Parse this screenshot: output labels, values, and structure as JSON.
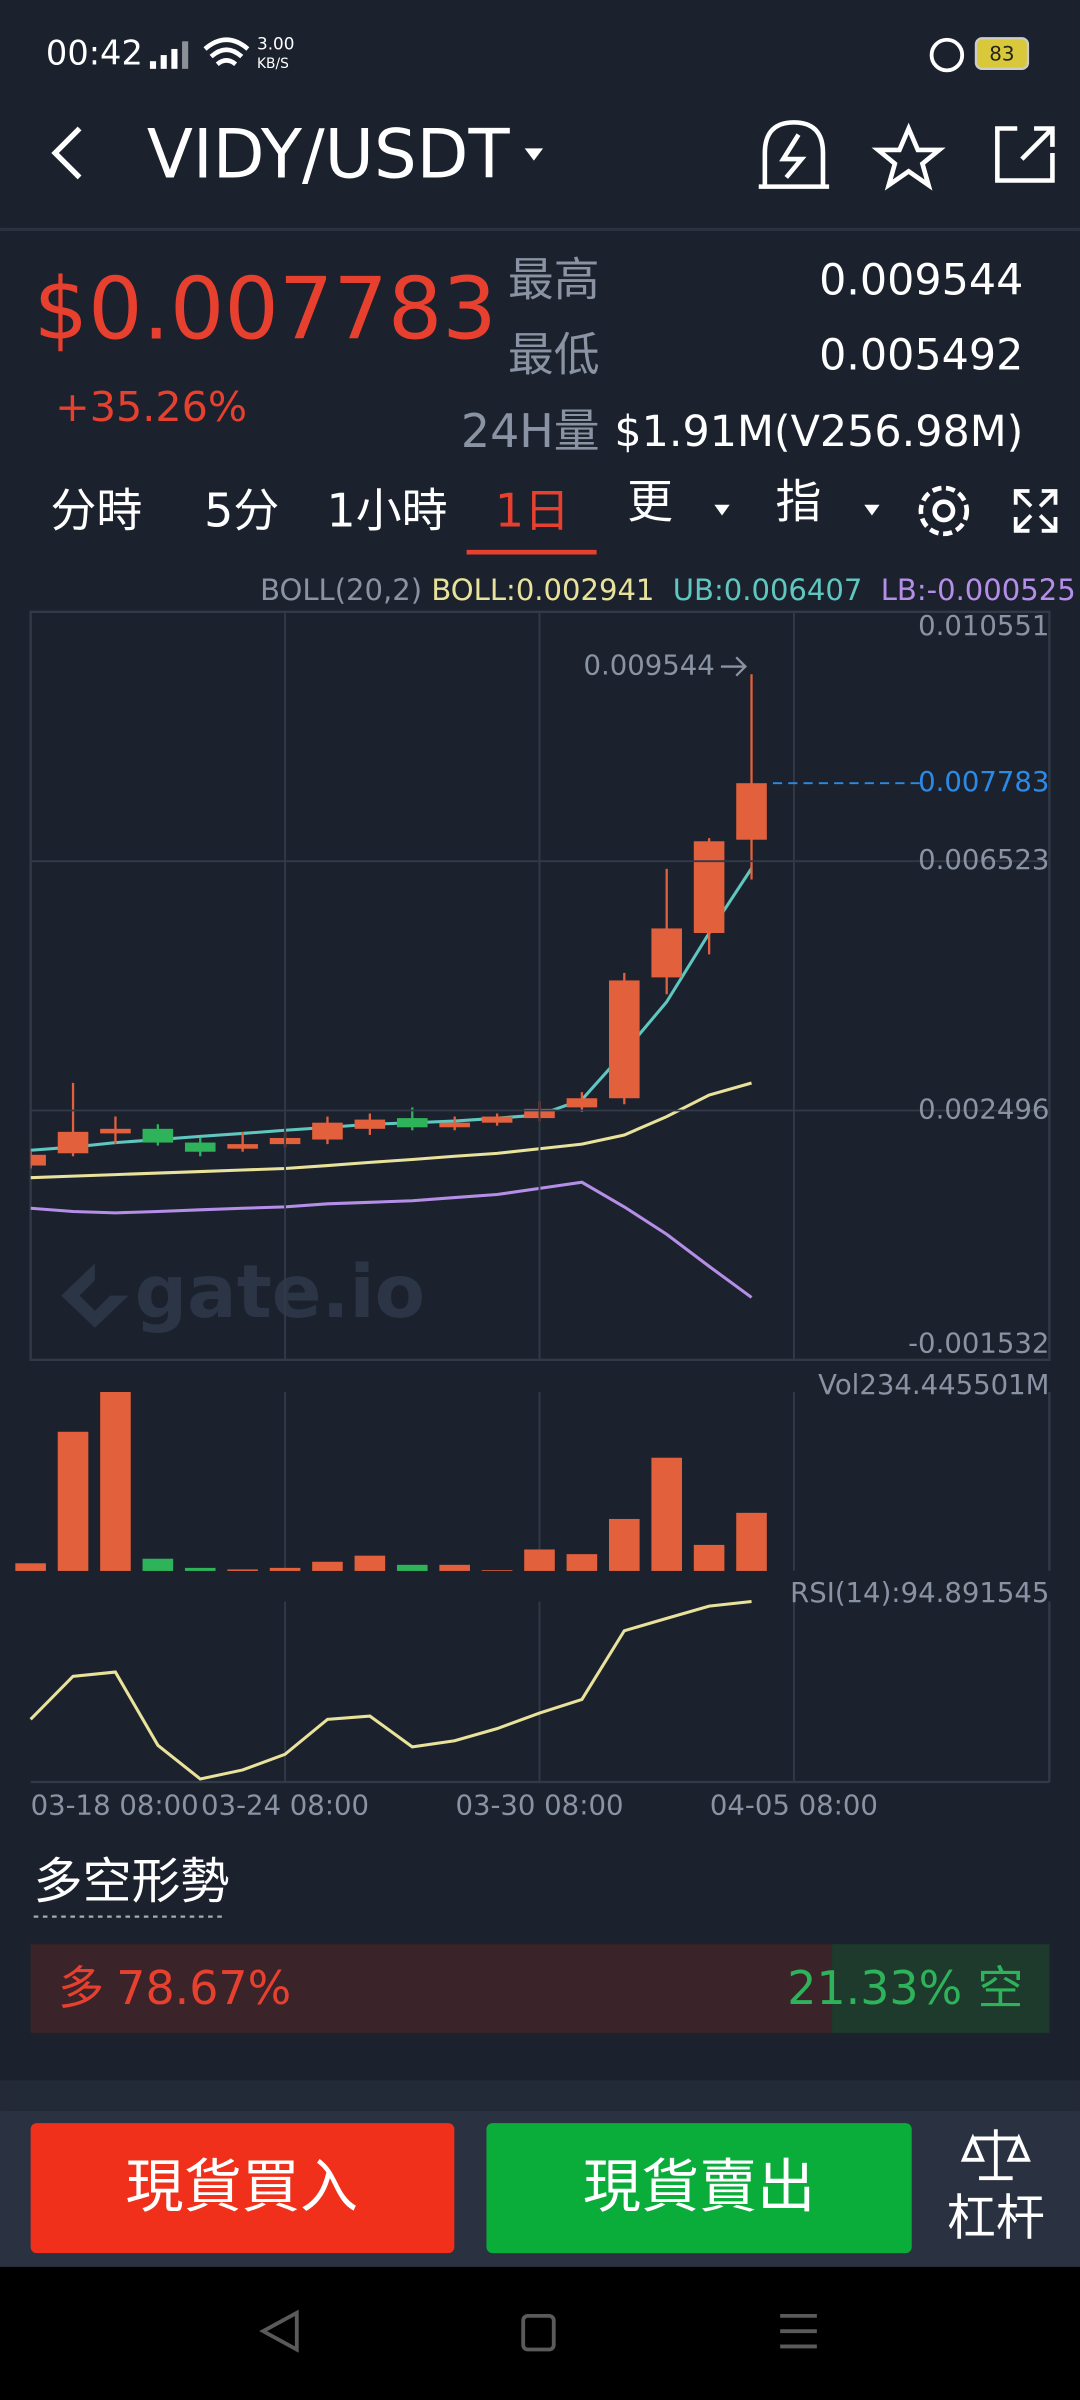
{
  "status_bar": {
    "time": "00:42",
    "speed": "3.00",
    "speed_unit": "KB/S",
    "battery": "83"
  },
  "header": {
    "pair": "VIDY/USDT"
  },
  "ticker": {
    "price": "$0.007783",
    "change": "+35.26%",
    "high_label": "最高",
    "high": "0.009544",
    "low_label": "最低",
    "low": "0.005492",
    "volume_label": "24H量",
    "volume": "$1.91M(V256.98M)"
  },
  "tabs": [
    "分時",
    "5分",
    "1小時",
    "1日",
    "更",
    "指"
  ],
  "chart_data": [
    {
      "type": "candlestick",
      "indicator": "BOLL(20,2)",
      "categories": [
        "03-18 08:00",
        null,
        null,
        null,
        null,
        null,
        "03-24 08:00",
        null,
        null,
        null,
        null,
        null,
        "03-30 08:00",
        null,
        null,
        null,
        null,
        null,
        "04-05 08:00"
      ],
      "open": [
        0.001607,
        0.001805,
        0.002126,
        0.0022,
        0.001978,
        0.001879,
        0.001953,
        0.002027,
        0.0022,
        0.002373,
        0.002225,
        0.002299,
        0.002373,
        0.002546,
        0.002694,
        0.004646,
        0.005363,
        0.00687,
        null
      ],
      "high": [
        0.001854,
        0.002942,
        0.002398,
        0.002274,
        0.002052,
        0.002151,
        0.002151,
        0.002398,
        0.002447,
        0.002546,
        0.002398,
        0.002447,
        0.002645,
        0.002793,
        0.00472,
        0.0064,
        0.006895,
        0.009544,
        null
      ],
      "low": [
        0.001558,
        0.001756,
        0.001953,
        0.001929,
        0.001756,
        0.00183,
        0.001904,
        0.001953,
        0.002101,
        0.002176,
        0.002176,
        0.00225,
        0.002324,
        0.002472,
        0.002596,
        0.004374,
        0.005017,
        0.006227,
        null
      ],
      "close": [
        0.00178,
        0.002151,
        0.0022,
        0.001978,
        0.00183,
        0.001953,
        0.002052,
        0.002299,
        0.002349,
        0.002225,
        0.002299,
        0.002398,
        0.002522,
        0.002694,
        0.004597,
        0.005437,
        0.006845,
        0.007783,
        null
      ],
      "up_color": "#e2603c",
      "down_color": "#2eb35a",
      "high_annotation": "0.009544",
      "last_price_label": "0.007783",
      "last_price_color": "#2b8ae6",
      "series": [
        {
          "name": "BOLL:0.002941",
          "color": "#e8e29a",
          "values": [
            0.00141,
            0.001435,
            0.00146,
            0.001484,
            0.001509,
            0.001534,
            0.001558,
            0.001607,
            0.001657,
            0.001706,
            0.001756,
            0.001805,
            0.001879,
            0.001953,
            0.002101,
            0.002398,
            0.002744,
            0.002941,
            null
          ]
        },
        {
          "name": "UB:0.006407",
          "color": "#5fc7c0",
          "values": [
            0.001854,
            0.001904,
            0.001978,
            0.002027,
            0.002077,
            0.002126,
            0.002176,
            0.002225,
            0.002274,
            0.002299,
            0.002324,
            0.002373,
            0.002423,
            0.00267,
            0.003436,
            0.004251,
            0.005363,
            0.006407,
            null
          ]
        },
        {
          "name": "LB:-0.000525",
          "color": "#b58ee8",
          "values": [
            0.000916,
            0.000866,
            0.000842,
            0.000866,
            0.000891,
            0.000916,
            0.00094,
            0.000989,
            0.001014,
            0.001039,
            0.001089,
            0.001138,
            0.001237,
            0.001336,
            0.00094,
            0.000496,
            -2.3e-05,
            -0.000525,
            null
          ]
        }
      ],
      "ylim": [
        -0.001532,
        0.010551
      ],
      "yticks": [
        -0.001532,
        0.002496,
        0.006523,
        0.010551
      ],
      "watermark": "gate.io"
    },
    {
      "type": "bar",
      "title": "Vol234.445501M",
      "values": [
        10.0,
        182.3,
        234.4,
        16.0,
        4.0,
        2.0,
        4.0,
        12.0,
        20.0,
        8.0,
        8.0,
        1.0,
        28.1,
        22.0,
        68.1,
        148.3,
        34.1,
        76.1,
        null
      ],
      "ylim": [
        0,
        234.445501
      ]
    },
    {
      "type": "line",
      "title": "RSI(14):94.891545",
      "color": "#e8e29a",
      "values": [
        49.3,
        65.9,
        67.6,
        39.2,
        26.2,
        29.7,
        35.7,
        49.3,
        50.5,
        38.6,
        41.0,
        45.7,
        51.7,
        57.0,
        83.6,
        88.4,
        93.1,
        94.891545,
        null
      ],
      "ylim": [
        25,
        94.891545
      ]
    }
  ],
  "sentiment": {
    "title": "多空形勢",
    "long_label": "多",
    "long": 78.67,
    "long_value_label": "78.67%",
    "short": 21.33,
    "short_value_label": "21.33%",
    "short_label": "空"
  },
  "actions": {
    "buy": "現貨買入",
    "sell": "現貨賣出",
    "leverage": "杠杆"
  }
}
